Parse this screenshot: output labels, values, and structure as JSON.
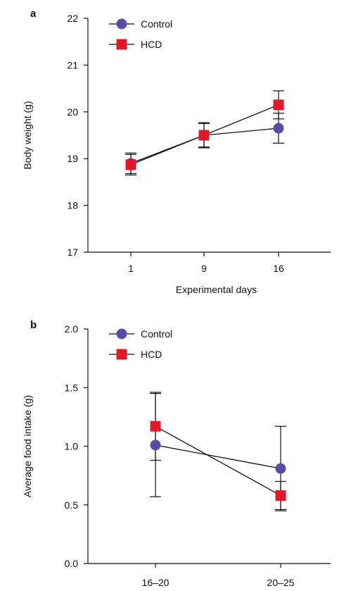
{
  "chart_data": [
    {
      "panel": "a",
      "type": "line",
      "title": "",
      "xlabel": "Experimental days",
      "ylabel": "Body weight (g)",
      "categories": [
        "1",
        "9",
        "16"
      ],
      "ylim": [
        17,
        22
      ],
      "yticks": [
        "17",
        "18",
        "19",
        "20",
        "21",
        "22"
      ],
      "grid": false,
      "legend_position": "top-left",
      "series": [
        {
          "name": "Control",
          "marker": "circle",
          "color": "#5b4aa3",
          "values": [
            18.9,
            19.5,
            19.65
          ],
          "error": [
            0.22,
            0.25,
            0.32
          ]
        },
        {
          "name": "HCD",
          "marker": "square",
          "color": "#e3172a",
          "values": [
            18.87,
            19.5,
            20.15
          ],
          "error": [
            0.22,
            0.27,
            0.3
          ]
        }
      ]
    },
    {
      "panel": "b",
      "type": "line",
      "title": "",
      "xlabel": "",
      "ylabel": "Average food intake (g)",
      "categories": [
        "16–20",
        "20–25"
      ],
      "ylim": [
        0.0,
        2.0
      ],
      "yticks": [
        "0.0",
        "0.5",
        "1.0",
        "1.5",
        "2.0"
      ],
      "grid": false,
      "legend_position": "top-left",
      "series": [
        {
          "name": "Control",
          "marker": "circle",
          "color": "#5b4aa3",
          "values": [
            1.01,
            0.81
          ],
          "error": [
            0.44,
            0.36
          ]
        },
        {
          "name": "HCD",
          "marker": "square",
          "color": "#e3172a",
          "values": [
            1.17,
            0.58
          ],
          "error": [
            0.29,
            0.12
          ]
        }
      ]
    }
  ]
}
